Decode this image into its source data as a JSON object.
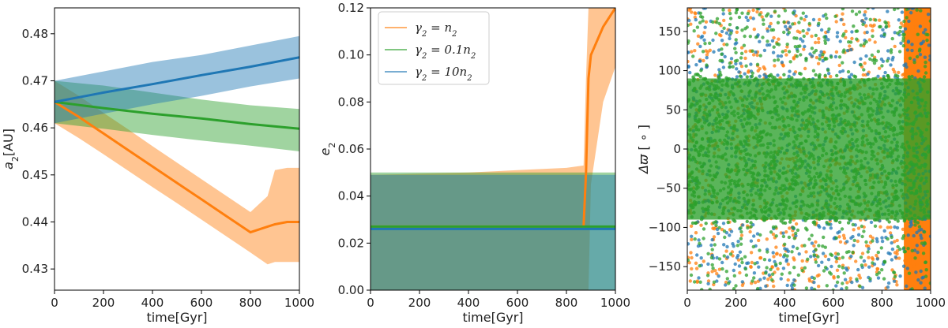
{
  "colors": {
    "orange": "#ff7f0e",
    "green": "#2ca02c",
    "blue": "#1f77b4",
    "axis": "#000000"
  },
  "chart_data": [
    {
      "type": "line",
      "xlabel": "time[Gyr]",
      "ylabel_main": "a",
      "ylabel_sub": "2",
      "ylabel_unit": "[AU]",
      "xlim": [
        0,
        1000
      ],
      "ylim": [
        0.4255,
        0.4855
      ],
      "xticks": [
        "0",
        "200",
        "400",
        "600",
        "800",
        "1000"
      ],
      "yticks": [
        "0.43",
        "0.44",
        "0.45",
        "0.46",
        "0.47",
        "0.48"
      ],
      "series": [
        {
          "color": "orange",
          "x": [
            0,
            100,
            200,
            300,
            400,
            500,
            600,
            700,
            800,
            870,
            900,
            950,
            1000
          ],
          "y": [
            0.4655,
            0.4623,
            0.4588,
            0.4553,
            0.4518,
            0.4483,
            0.4448,
            0.4413,
            0.4378,
            0.439,
            0.4395,
            0.44,
            0.44
          ],
          "band_upper": [
            0.47,
            0.4668,
            0.4632,
            0.4597,
            0.4561,
            0.4526,
            0.4491,
            0.4456,
            0.4421,
            0.4455,
            0.451,
            0.4515,
            0.4515
          ],
          "band_lower": [
            0.461,
            0.4578,
            0.4544,
            0.4509,
            0.4474,
            0.444,
            0.4405,
            0.437,
            0.4335,
            0.431,
            0.4315,
            0.4315,
            0.4315
          ]
        },
        {
          "color": "green",
          "x": [
            0,
            200,
            400,
            600,
            800,
            1000
          ],
          "y": [
            0.4655,
            0.4642,
            0.463,
            0.462,
            0.4608,
            0.4598
          ],
          "band_upper": [
            0.47,
            0.469,
            0.4675,
            0.466,
            0.4648,
            0.464
          ],
          "band_lower": [
            0.461,
            0.4598,
            0.4585,
            0.4573,
            0.4562,
            0.455
          ]
        },
        {
          "color": "blue",
          "x": [
            0,
            200,
            400,
            600,
            800,
            1000
          ],
          "y": [
            0.4655,
            0.4675,
            0.4693,
            0.4712,
            0.473,
            0.475
          ],
          "band_upper": [
            0.47,
            0.472,
            0.474,
            0.4755,
            0.4775,
            0.4795
          ],
          "band_lower": [
            0.461,
            0.463,
            0.465,
            0.4668,
            0.4688,
            0.4705
          ]
        }
      ]
    },
    {
      "type": "line",
      "xlabel": "time[Gyr]",
      "ylabel_main": "e",
      "ylabel_sub": "2",
      "xlim": [
        0,
        1000
      ],
      "ylim": [
        0.0,
        0.12
      ],
      "xticks": [
        "0",
        "200",
        "400",
        "600",
        "800",
        "1000"
      ],
      "yticks": [
        "0.00",
        "0.02",
        "0.04",
        "0.06",
        "0.08",
        "0.10",
        "0.12"
      ],
      "legend": {
        "location": "upper-left",
        "entries": [
          {
            "color": "orange",
            "main": "γ",
            "sub": "2",
            "rest": " = n",
            "sub2": "2"
          },
          {
            "color": "green",
            "main": "γ",
            "sub": "2",
            "rest": " = 0.1n",
            "sub2": "2"
          },
          {
            "color": "blue",
            "main": "γ",
            "sub": "2",
            "rest": " = 10n",
            "sub2": "2"
          }
        ]
      },
      "series": [
        {
          "color": "orange",
          "x": [
            0,
            200,
            400,
            600,
            800,
            870,
            880,
            890,
            900,
            950,
            1000
          ],
          "y": [
            0.027,
            0.027,
            0.027,
            0.027,
            0.027,
            0.027,
            0.05,
            0.09,
            0.1,
            0.112,
            0.12
          ],
          "band_upper": [
            0.049,
            0.0495,
            0.05,
            0.051,
            0.052,
            0.053,
            0.09,
            0.12,
            0.12,
            0.12,
            0.12
          ],
          "band_lower": [
            0.0,
            0.0,
            0.0,
            0.0,
            0.0,
            0.0,
            0.0,
            0.0,
            0.045,
            0.08,
            0.095
          ]
        },
        {
          "color": "green",
          "x": [
            0,
            890,
            900,
            1000
          ],
          "y": [
            0.027,
            0.027,
            0.027,
            0.027
          ],
          "band_upper": [
            0.05,
            0.05,
            0.05,
            0.05
          ],
          "band_lower": [
            0.0,
            0.0,
            0.0,
            0.0
          ]
        },
        {
          "color": "blue",
          "x": [
            0,
            1000
          ],
          "y": [
            0.026,
            0.026
          ],
          "band_upper": [
            0.049,
            0.049
          ],
          "band_lower": [
            0.0,
            0.0
          ]
        }
      ]
    },
    {
      "type": "scatter",
      "xlabel": "time[Gyr]",
      "ylabel_main": "Δϖ",
      "ylabel_unit": " [ ∘ ]",
      "xlim": [
        0,
        1000
      ],
      "ylim": [
        -180,
        180
      ],
      "xticks": [
        "0",
        "200",
        "400",
        "600",
        "800",
        "1000"
      ],
      "yticks": [
        "−150",
        "−100",
        "−50",
        "0",
        "50",
        "100",
        "150"
      ],
      "series": [
        {
          "color": "orange",
          "dense_region": [
            -90,
            90
          ],
          "saturated_after_x": 890
        },
        {
          "color": "blue",
          "dense_region": [
            -90,
            90
          ]
        },
        {
          "color": "green",
          "dense_region": [
            -95,
            95
          ]
        }
      ]
    }
  ]
}
